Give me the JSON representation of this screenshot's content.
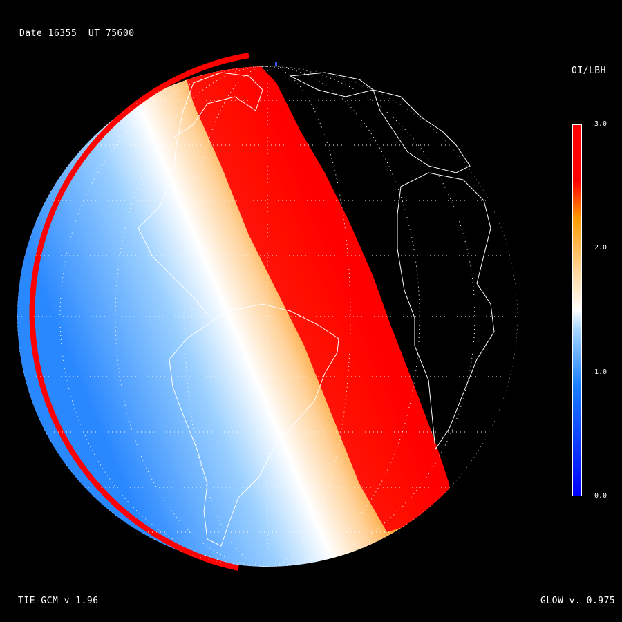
{
  "header": {
    "date_label": "Date 16355  UT 75600",
    "product_label": "OI/LBH"
  },
  "footer": {
    "model_label": "TIE-GCM v 1.96",
    "glow_label": "GLOW v. 0.975"
  },
  "colorbar": {
    "min": 0.0,
    "max": 3.0,
    "ticks": [
      "3.0",
      "2.0",
      "1.0",
      "0.0"
    ],
    "colors": [
      "#0000ff",
      "#1a80ff",
      "#a8d8ff",
      "#ffffff",
      "#ffd9a0",
      "#ff9900",
      "#ff0000"
    ]
  },
  "map": {
    "colors": {
      "night": "#000000",
      "saturated": "#ff0000",
      "coastline": "#ffffff",
      "graticule": "#ffffff"
    },
    "graticule": "dotted"
  }
}
